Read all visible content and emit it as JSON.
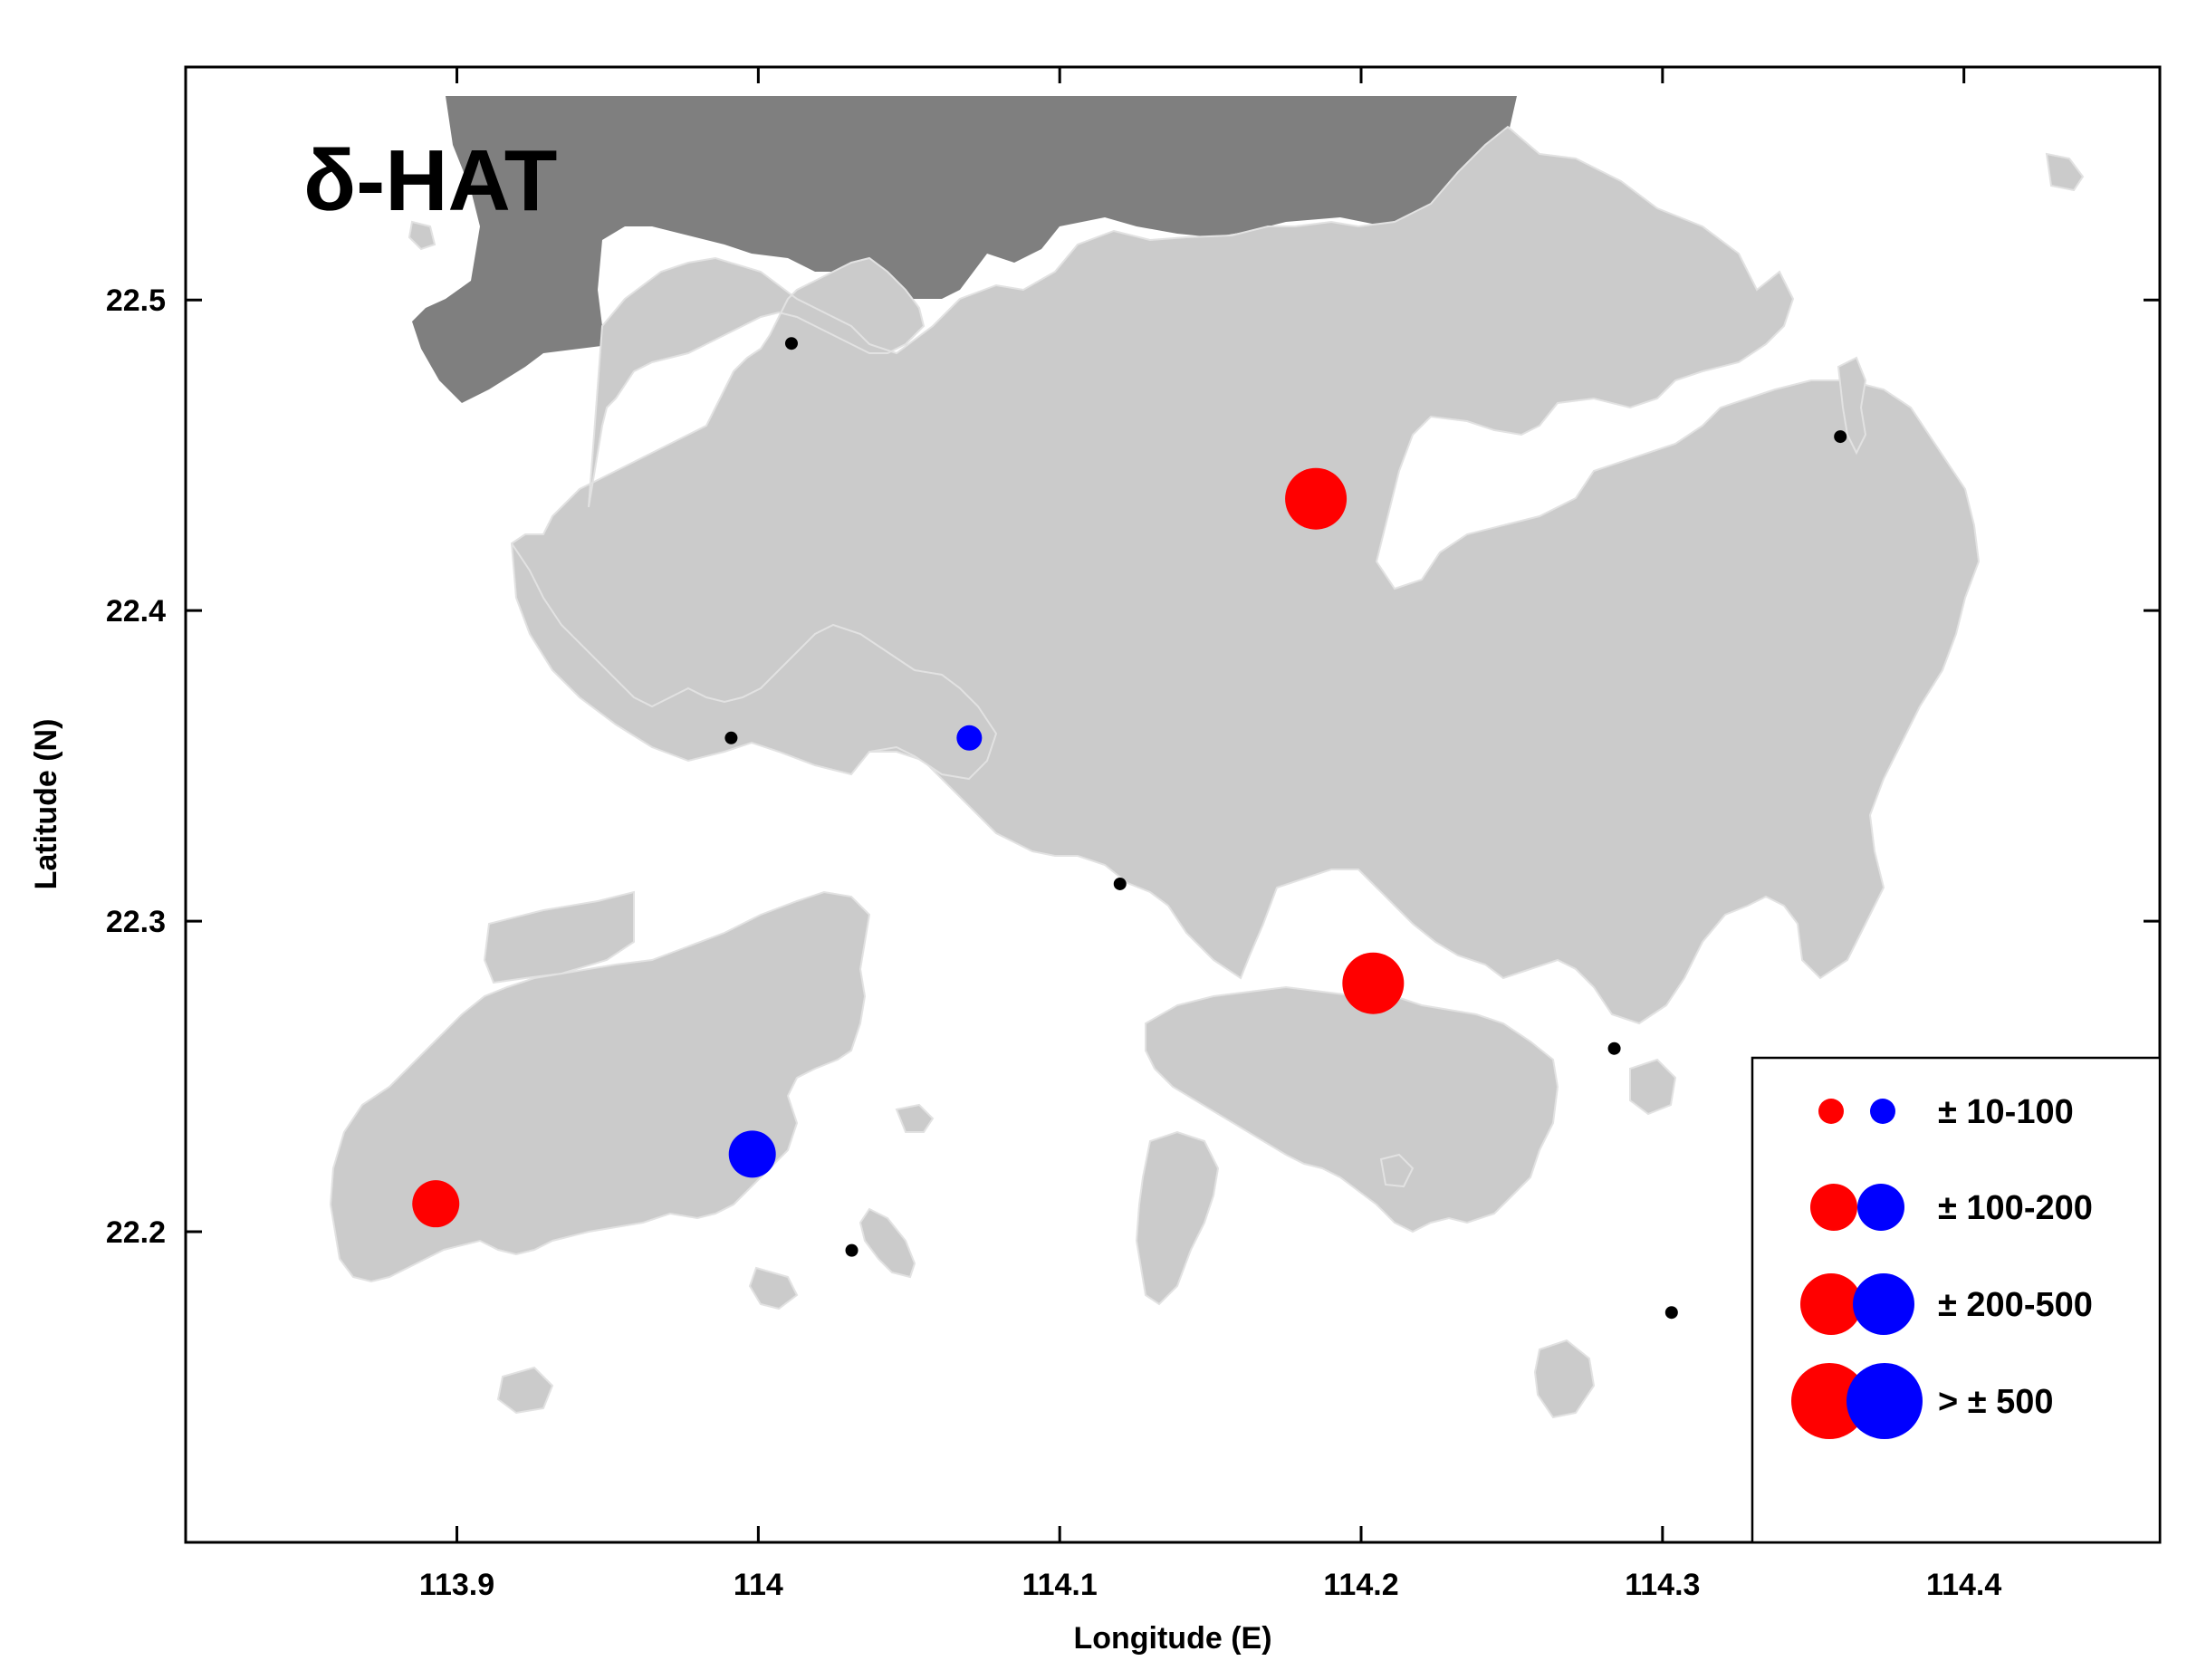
{
  "panel_label": "δ-HAT",
  "colors": {
    "increase": "#ff0000",
    "decrease": "#0000ff",
    "no_change": "#000000",
    "land": "#cbcbcb",
    "mainland": "#7f7f7f"
  },
  "chart_data": {
    "type": "scatter",
    "title": "",
    "xlabel": "Longitude (E)",
    "ylabel": "Latitude (N)",
    "xlim": [
      113.81,
      114.465
    ],
    "ylim": [
      22.1,
      22.575
    ],
    "x_ticks": [
      {
        "value": 113.9,
        "label": "113.9"
      },
      {
        "value": 114.0,
        "label": "114"
      },
      {
        "value": 114.1,
        "label": "114.1"
      },
      {
        "value": 114.2,
        "label": "114.2"
      },
      {
        "value": 114.3,
        "label": "114.3"
      },
      {
        "value": 114.4,
        "label": "114.4"
      }
    ],
    "y_ticks": [
      {
        "value": 22.2,
        "label": "22.2"
      },
      {
        "value": 22.3,
        "label": "22.3"
      },
      {
        "value": 22.4,
        "label": "22.4"
      },
      {
        "value": 22.5,
        "label": "22.5"
      }
    ],
    "legend": {
      "placement": "bottom-right",
      "entries": [
        {
          "label": "± 10-100",
          "size_class": 1
        },
        {
          "label": "± 100-200",
          "size_class": 2
        },
        {
          "label": "± 200-500",
          "size_class": 3
        },
        {
          "label": "> ± 500",
          "size_class": 4
        }
      ]
    },
    "points": [
      {
        "lon": 114.185,
        "lat": 22.436,
        "sign": "positive",
        "size_class": 3
      },
      {
        "lon": 114.204,
        "lat": 22.28,
        "sign": "positive",
        "size_class": 3
      },
      {
        "lon": 113.893,
        "lat": 22.209,
        "sign": "positive",
        "size_class": 2
      },
      {
        "lon": 113.998,
        "lat": 22.225,
        "sign": "negative",
        "size_class": 2
      },
      {
        "lon": 114.07,
        "lat": 22.359,
        "sign": "negative",
        "size_class": 1
      },
      {
        "lon": 114.011,
        "lat": 22.486,
        "sign": "none",
        "size_class": 0
      },
      {
        "lon": 113.991,
        "lat": 22.359,
        "sign": "none",
        "size_class": 0
      },
      {
        "lon": 114.12,
        "lat": 22.312,
        "sign": "none",
        "size_class": 0
      },
      {
        "lon": 114.031,
        "lat": 22.194,
        "sign": "none",
        "size_class": 0
      },
      {
        "lon": 114.359,
        "lat": 22.456,
        "sign": "none",
        "size_class": 0
      },
      {
        "lon": 114.284,
        "lat": 22.259,
        "sign": "none",
        "size_class": 0
      },
      {
        "lon": 114.303,
        "lat": 22.174,
        "sign": "none",
        "size_class": 0
      }
    ]
  }
}
